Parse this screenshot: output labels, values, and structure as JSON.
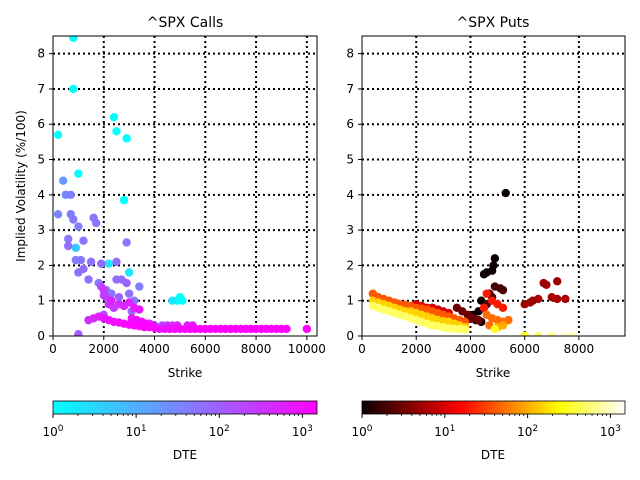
{
  "chart_data": [
    {
      "type": "scatter",
      "title": "^SPX Calls",
      "xlabel": "Strike",
      "ylabel": "Implied Volatility (%/100)",
      "xlim": [
        0,
        10400
      ],
      "ylim": [
        0,
        8.5
      ],
      "xticks": [
        0,
        2000,
        4000,
        6000,
        8000,
        10000
      ],
      "yticks": [
        0,
        1,
        2,
        3,
        4,
        5,
        6,
        7,
        8
      ],
      "xtick_labels": [
        "0",
        "2000",
        "4000",
        "6000",
        "8000",
        "10000"
      ],
      "ytick_labels": [
        "0",
        "1",
        "2",
        "3",
        "4",
        "5",
        "6",
        "7",
        "8"
      ],
      "grid": true,
      "colormap": "cool",
      "colorbar": {
        "label": "DTE",
        "scale": "log",
        "range": [
          1,
          1500
        ],
        "tick_labels": [
          "10^0",
          "10^1",
          "10^2",
          "10^3"
        ],
        "tick_values": [
          1,
          10,
          100,
          1000
        ]
      },
      "points": [
        [
          800,
          8.45,
          1
        ],
        [
          800,
          7.0,
          1
        ],
        [
          200,
          5.7,
          1
        ],
        [
          2400,
          6.2,
          1
        ],
        [
          2500,
          5.8,
          1
        ],
        [
          2900,
          5.6,
          1
        ],
        [
          1000,
          4.6,
          1
        ],
        [
          2800,
          3.85,
          1
        ],
        [
          5000,
          1.1,
          1
        ],
        [
          4900,
          1.0,
          1
        ],
        [
          5100,
          1.0,
          1
        ],
        [
          4700,
          1.0,
          2
        ],
        [
          2200,
          2.05,
          2
        ],
        [
          3000,
          1.8,
          2
        ],
        [
          900,
          2.5,
          5
        ],
        [
          400,
          4.4,
          20
        ],
        [
          500,
          4.0,
          30
        ],
        [
          700,
          4.0,
          40
        ],
        [
          200,
          3.45,
          30
        ],
        [
          700,
          3.45,
          40
        ],
        [
          800,
          3.3,
          50
        ],
        [
          1000,
          3.1,
          40
        ],
        [
          1600,
          3.35,
          50
        ],
        [
          1700,
          3.2,
          60
        ],
        [
          600,
          2.75,
          50
        ],
        [
          600,
          2.55,
          60
        ],
        [
          1200,
          2.7,
          60
        ],
        [
          900,
          2.15,
          40
        ],
        [
          1100,
          2.15,
          50
        ],
        [
          1500,
          2.1,
          60
        ],
        [
          1900,
          2.05,
          70
        ],
        [
          2500,
          2.1,
          60
        ],
        [
          2900,
          2.65,
          50
        ],
        [
          1000,
          1.8,
          60
        ],
        [
          1200,
          1.9,
          70
        ],
        [
          1400,
          1.6,
          60
        ],
        [
          1800,
          1.5,
          50
        ],
        [
          2100,
          1.3,
          40
        ],
        [
          2300,
          1.2,
          50
        ],
        [
          2500,
          1.6,
          60
        ],
        [
          2700,
          1.6,
          70
        ],
        [
          2900,
          1.5,
          80
        ],
        [
          3000,
          1.2,
          60
        ],
        [
          3200,
          1.0,
          50
        ],
        [
          3400,
          1.4,
          40
        ],
        [
          3100,
          0.7,
          70
        ],
        [
          2600,
          1.1,
          90
        ],
        [
          2000,
          1.15,
          150
        ],
        [
          1900,
          1.4,
          200
        ],
        [
          2000,
          1.3,
          300
        ],
        [
          2100,
          1.1,
          300
        ],
        [
          2200,
          0.9,
          400
        ],
        [
          2300,
          1.0,
          500
        ],
        [
          2400,
          0.8,
          300
        ],
        [
          2600,
          0.9,
          400
        ],
        [
          2800,
          0.85,
          500
        ],
        [
          3000,
          0.95,
          600
        ],
        [
          3200,
          0.8,
          700
        ],
        [
          3400,
          0.75,
          800
        ],
        [
          2000,
          0.6,
          200
        ],
        [
          3100,
          0.5,
          900
        ],
        [
          3300,
          0.45,
          1000
        ],
        [
          3500,
          0.4,
          1100
        ],
        [
          3700,
          0.35,
          1200
        ],
        [
          3900,
          0.3,
          1300
        ],
        [
          1400,
          0.45,
          400
        ],
        [
          1600,
          0.5,
          500
        ],
        [
          1800,
          0.55,
          600
        ],
        [
          2000,
          0.5,
          800
        ],
        [
          2200,
          0.45,
          900
        ],
        [
          2400,
          0.4,
          1000
        ],
        [
          2600,
          0.38,
          1100
        ],
        [
          2800,
          0.35,
          1200
        ],
        [
          3000,
          0.32,
          1300
        ],
        [
          3200,
          0.3,
          1400
        ],
        [
          3400,
          0.28,
          1400
        ],
        [
          3600,
          0.25,
          1400
        ],
        [
          3800,
          0.25,
          1400
        ],
        [
          4000,
          0.23,
          1400
        ],
        [
          4200,
          0.2,
          800
        ],
        [
          4400,
          0.2,
          900
        ],
        [
          4600,
          0.2,
          1000
        ],
        [
          4800,
          0.2,
          1100
        ],
        [
          5000,
          0.2,
          1200
        ],
        [
          5200,
          0.2,
          1300
        ],
        [
          5400,
          0.2,
          1400
        ],
        [
          5600,
          0.2,
          1400
        ],
        [
          5800,
          0.2,
          1400
        ],
        [
          6000,
          0.2,
          1400
        ],
        [
          6200,
          0.2,
          1400
        ],
        [
          6400,
          0.2,
          1400
        ],
        [
          6600,
          0.2,
          1400
        ],
        [
          6800,
          0.2,
          1400
        ],
        [
          7000,
          0.2,
          1400
        ],
        [
          7200,
          0.2,
          1400
        ],
        [
          7400,
          0.2,
          1400
        ],
        [
          7600,
          0.2,
          1400
        ],
        [
          7800,
          0.2,
          1400
        ],
        [
          8000,
          0.2,
          1400
        ],
        [
          8200,
          0.2,
          1400
        ],
        [
          8400,
          0.2,
          1400
        ],
        [
          8600,
          0.2,
          1400
        ],
        [
          8800,
          0.2,
          1400
        ],
        [
          9000,
          0.2,
          1400
        ],
        [
          9200,
          0.2,
          1400
        ],
        [
          10000,
          0.2,
          1400
        ],
        [
          4300,
          0.3,
          200
        ],
        [
          4500,
          0.3,
          300
        ],
        [
          4700,
          0.3,
          400
        ],
        [
          4900,
          0.3,
          500
        ],
        [
          5300,
          0.3,
          600
        ],
        [
          5500,
          0.3,
          700
        ],
        [
          1000,
          0.0,
          50
        ],
        [
          1000,
          0.05,
          100
        ],
        [
          3600,
          0.35,
          300
        ],
        [
          3800,
          0.35,
          200
        ],
        [
          4000,
          0.3,
          150
        ]
      ]
    },
    {
      "type": "scatter",
      "title": "^SPX Puts",
      "xlabel": "Strike",
      "ylabel": "",
      "xlim": [
        0,
        9700
      ],
      "ylim": [
        0,
        8.5
      ],
      "xticks": [
        0,
        2000,
        4000,
        6000,
        8000
      ],
      "yticks": [
        0,
        1,
        2,
        3,
        4,
        5,
        6,
        7,
        8
      ],
      "xtick_labels": [
        "0",
        "2000",
        "4000",
        "6000",
        "8000"
      ],
      "ytick_labels": [
        "0",
        "1",
        "2",
        "3",
        "4",
        "5",
        "6",
        "7",
        "8"
      ],
      "grid": true,
      "colormap": "hot",
      "colorbar": {
        "label": "DTE",
        "scale": "log",
        "range": [
          1,
          1500
        ],
        "tick_labels": [
          "10^0",
          "10^1",
          "10^2",
          "10^3"
        ],
        "tick_values": [
          1,
          10,
          100,
          1000
        ]
      },
      "points": [
        [
          5300,
          4.05,
          1
        ],
        [
          4900,
          2.2,
          1
        ],
        [
          4850,
          2.0,
          1
        ],
        [
          4800,
          1.85,
          1
        ],
        [
          4600,
          1.8,
          1
        ],
        [
          4500,
          1.75,
          1
        ],
        [
          4900,
          1.4,
          2
        ],
        [
          5100,
          1.35,
          2
        ],
        [
          5200,
          1.3,
          2
        ],
        [
          4700,
          1.2,
          2
        ],
        [
          4800,
          1.1,
          2
        ],
        [
          4400,
          1.0,
          1
        ],
        [
          4600,
          0.9,
          2
        ],
        [
          4300,
          0.7,
          1
        ],
        [
          4100,
          0.6,
          1
        ],
        [
          4000,
          0.5,
          2
        ],
        [
          4200,
          0.45,
          1
        ],
        [
          4400,
          0.4,
          1
        ],
        [
          3500,
          0.8,
          3
        ],
        [
          3700,
          0.7,
          3
        ],
        [
          3900,
          0.6,
          3
        ],
        [
          4100,
          0.5,
          3
        ],
        [
          4300,
          0.45,
          3
        ],
        [
          6700,
          1.5,
          5
        ],
        [
          6800,
          1.45,
          5
        ],
        [
          7200,
          1.55,
          5
        ],
        [
          7000,
          1.1,
          6
        ],
        [
          7200,
          1.05,
          6
        ],
        [
          7500,
          1.05,
          6
        ],
        [
          6500,
          1.05,
          6
        ],
        [
          6200,
          0.95,
          5
        ],
        [
          6000,
          0.9,
          5
        ],
        [
          6300,
          1.0,
          5
        ],
        [
          2000,
          0.9,
          10
        ],
        [
          2200,
          0.85,
          10
        ],
        [
          2400,
          0.8,
          10
        ],
        [
          2600,
          0.8,
          10
        ],
        [
          2800,
          0.75,
          10
        ],
        [
          3000,
          0.7,
          10
        ],
        [
          3200,
          0.65,
          10
        ],
        [
          4600,
          1.2,
          20
        ],
        [
          4800,
          1.0,
          20
        ],
        [
          5000,
          0.9,
          20
        ],
        [
          5200,
          0.8,
          20
        ],
        [
          4500,
          0.8,
          20
        ],
        [
          400,
          1.2,
          40
        ],
        [
          600,
          1.1,
          40
        ],
        [
          800,
          1.05,
          40
        ],
        [
          1000,
          1.0,
          40
        ],
        [
          1200,
          0.95,
          40
        ],
        [
          1400,
          0.9,
          40
        ],
        [
          1600,
          0.88,
          40
        ],
        [
          1800,
          0.85,
          40
        ],
        [
          2000,
          0.8,
          40
        ],
        [
          2200,
          0.78,
          40
        ],
        [
          2400,
          0.75,
          40
        ],
        [
          2600,
          0.7,
          40
        ],
        [
          2800,
          0.65,
          40
        ],
        [
          3000,
          0.6,
          40
        ],
        [
          3200,
          0.55,
          40
        ],
        [
          3400,
          0.5,
          40
        ],
        [
          3600,
          0.45,
          40
        ],
        [
          3800,
          0.4,
          40
        ],
        [
          4600,
          0.6,
          50
        ],
        [
          4800,
          0.5,
          50
        ],
        [
          5000,
          0.45,
          50
        ],
        [
          5200,
          0.4,
          50
        ],
        [
          5400,
          0.45,
          50
        ],
        [
          4700,
          0.3,
          50
        ],
        [
          400,
          1.0,
          150
        ],
        [
          600,
          0.95,
          150
        ],
        [
          800,
          0.9,
          150
        ],
        [
          1000,
          0.85,
          150
        ],
        [
          1200,
          0.8,
          150
        ],
        [
          1400,
          0.75,
          150
        ],
        [
          1600,
          0.7,
          150
        ],
        [
          1800,
          0.7,
          150
        ],
        [
          2000,
          0.65,
          150
        ],
        [
          2200,
          0.6,
          150
        ],
        [
          2400,
          0.55,
          150
        ],
        [
          2600,
          0.5,
          150
        ],
        [
          2800,
          0.45,
          150
        ],
        [
          3000,
          0.42,
          150
        ],
        [
          3200,
          0.4,
          150
        ],
        [
          3400,
          0.35,
          150
        ],
        [
          3600,
          0.3,
          150
        ],
        [
          3800,
          0.25,
          150
        ],
        [
          400,
          0.85,
          500
        ],
        [
          600,
          0.8,
          500
        ],
        [
          800,
          0.75,
          500
        ],
        [
          1000,
          0.7,
          500
        ],
        [
          1200,
          0.65,
          500
        ],
        [
          1400,
          0.6,
          500
        ],
        [
          1600,
          0.55,
          500
        ],
        [
          1800,
          0.5,
          500
        ],
        [
          2000,
          0.45,
          500
        ],
        [
          2200,
          0.4,
          500
        ],
        [
          2400,
          0.35,
          500
        ],
        [
          2600,
          0.3,
          500
        ],
        [
          2800,
          0.28,
          500
        ],
        [
          3000,
          0.25,
          500
        ],
        [
          3200,
          0.22,
          500
        ],
        [
          3400,
          0.2,
          500
        ],
        [
          3600,
          0.2,
          500
        ],
        [
          3800,
          0.18,
          500
        ],
        [
          5000,
          0.25,
          100
        ],
        [
          5200,
          0.3,
          100
        ],
        [
          4900,
          0.2,
          300
        ],
        [
          6000,
          0.0,
          300
        ],
        [
          6500,
          0.0,
          500
        ],
        [
          7000,
          0.0,
          700
        ],
        [
          7500,
          0.0,
          1000
        ],
        [
          7800,
          0.0,
          1000
        ]
      ]
    }
  ]
}
